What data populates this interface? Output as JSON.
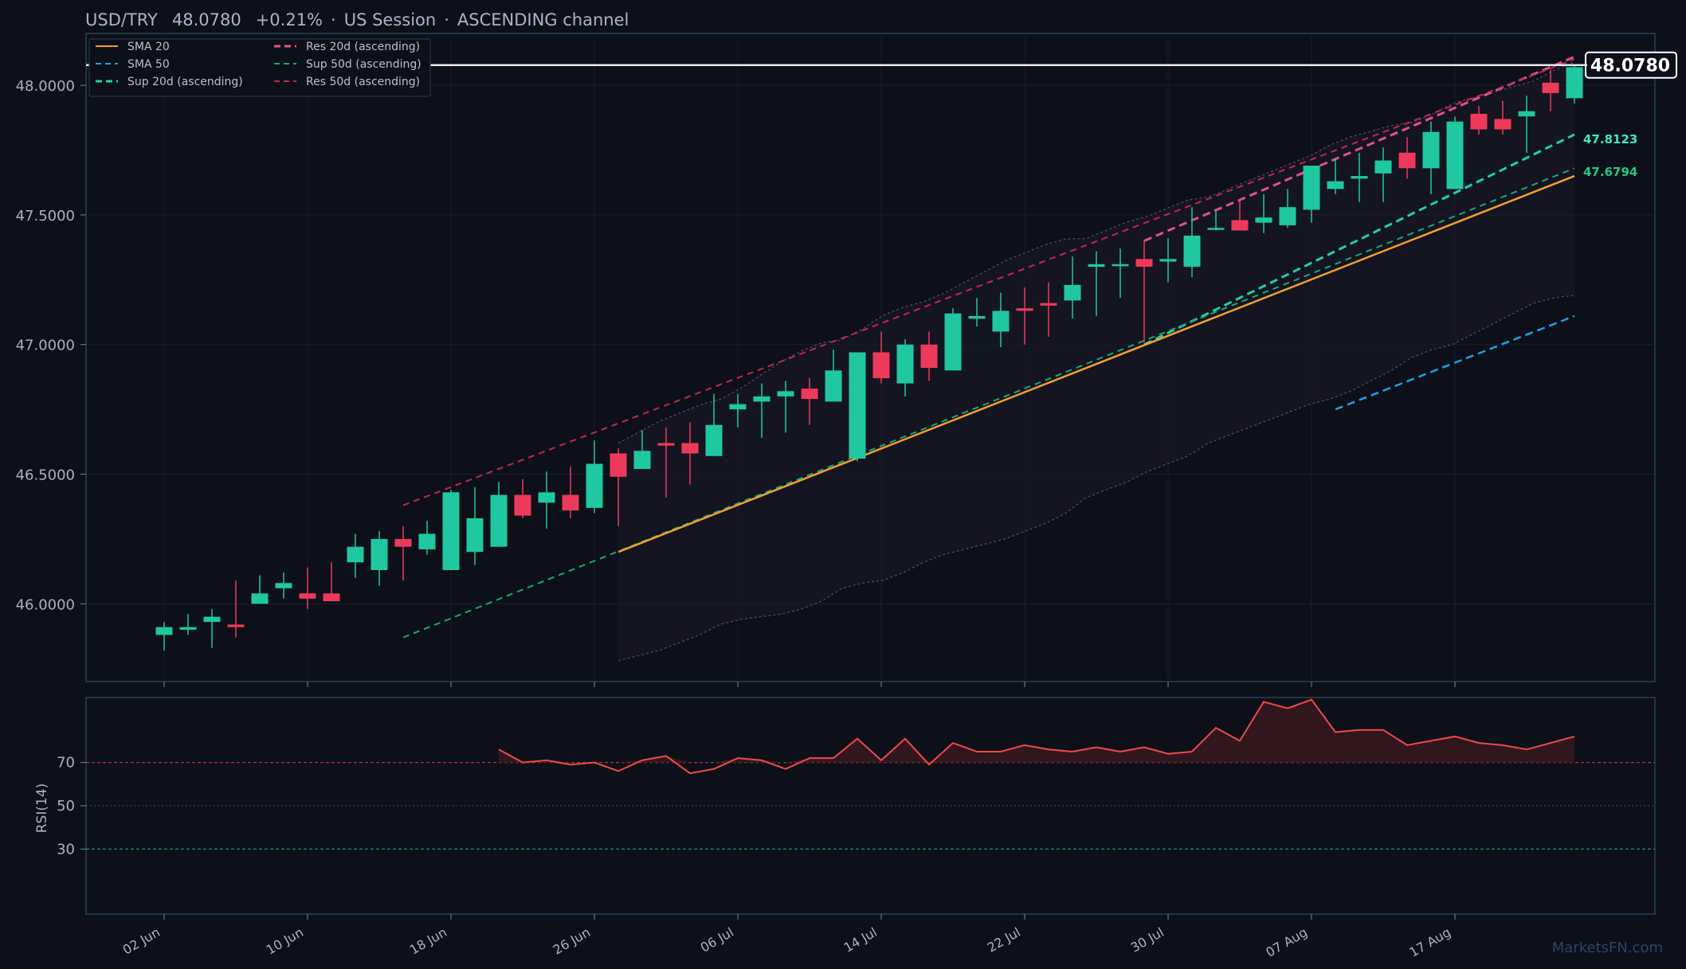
{
  "header": {
    "symbol": "USD/TRY",
    "price": "48.0780",
    "change": "+0.21%",
    "session": "US Session",
    "pattern": "ASCENDING channel"
  },
  "price_label": "48.0780",
  "level_labels": {
    "sup20": "47.8123",
    "sup50": "47.6794"
  },
  "rsi_ylabel": "RSI(14)",
  "watermark": "MarketsFN.com",
  "legend": [
    {
      "label": "SMA 20",
      "color": "#f0a030",
      "style": "solid"
    },
    {
      "label": "SMA 50",
      "color": "#1ea0e6",
      "style": "dashed"
    },
    {
      "label": "Sup 20d (ascending)",
      "color": "#20d0a0",
      "style": "dashed-bold"
    },
    {
      "label": "Res 20d (ascending)",
      "color": "#e0508c",
      "style": "dashed-bold"
    },
    {
      "label": "Sup 50d (ascending)",
      "color": "#18a878",
      "style": "dashed"
    },
    {
      "label": "Res 50d (ascending)",
      "color": "#c02850",
      "style": "dashed"
    }
  ],
  "colors": {
    "background": "#0d1018",
    "up": "#1fc8a0",
    "down": "#ee3a5a",
    "rsi": "#ee4a4a",
    "frame": "#25415c"
  },
  "chart_data": {
    "type": "candlestick",
    "ylim": [
      45.7,
      48.2
    ],
    "yticks": [
      "46.0000",
      "46.5000",
      "47.0000",
      "47.5000",
      "48.0000"
    ],
    "xticks": [
      {
        "i": 0,
        "label": "02 Jun"
      },
      {
        "i": 6,
        "label": "10 Jun"
      },
      {
        "i": 12,
        "label": "18 Jun"
      },
      {
        "i": 18,
        "label": "26 Jun"
      },
      {
        "i": 24,
        "label": "06 Jul"
      },
      {
        "i": 30,
        "label": "14 Jul"
      },
      {
        "i": 36,
        "label": "22 Jul"
      },
      {
        "i": 42,
        "label": "30 Jul"
      },
      {
        "i": 48,
        "label": "07 Aug"
      },
      {
        "i": 54,
        "label": "17 Aug"
      }
    ],
    "candles": [
      [
        45.88,
        45.91,
        45.82,
        45.93
      ],
      [
        45.9,
        45.91,
        45.88,
        45.96
      ],
      [
        45.93,
        45.95,
        45.83,
        45.98
      ],
      [
        45.92,
        45.91,
        45.87,
        46.09
      ],
      [
        46.0,
        46.04,
        46.0,
        46.11
      ],
      [
        46.06,
        46.08,
        46.02,
        46.12
      ],
      [
        46.04,
        46.02,
        45.98,
        46.14
      ],
      [
        46.04,
        46.01,
        46.01,
        46.16
      ],
      [
        46.16,
        46.22,
        46.1,
        46.27
      ],
      [
        46.13,
        46.25,
        46.07,
        46.28
      ],
      [
        46.25,
        46.22,
        46.09,
        46.3
      ],
      [
        46.21,
        46.27,
        46.19,
        46.32
      ],
      [
        46.13,
        46.43,
        46.13,
        46.44
      ],
      [
        46.2,
        46.33,
        46.15,
        46.45
      ],
      [
        46.22,
        46.42,
        46.22,
        46.47
      ],
      [
        46.42,
        46.34,
        46.33,
        46.48
      ],
      [
        46.39,
        46.43,
        46.29,
        46.51
      ],
      [
        46.42,
        46.36,
        46.33,
        46.53
      ],
      [
        46.37,
        46.54,
        46.35,
        46.63
      ],
      [
        46.58,
        46.49,
        46.3,
        46.6
      ],
      [
        46.52,
        46.59,
        46.52,
        46.67
      ],
      [
        46.62,
        46.61,
        46.41,
        46.68
      ],
      [
        46.62,
        46.58,
        46.46,
        46.7
      ],
      [
        46.57,
        46.69,
        46.57,
        46.81
      ],
      [
        46.75,
        46.77,
        46.68,
        46.81
      ],
      [
        46.78,
        46.8,
        46.64,
        46.85
      ],
      [
        46.8,
        46.82,
        46.66,
        46.86
      ],
      [
        46.83,
        46.79,
        46.69,
        46.87
      ],
      [
        46.78,
        46.9,
        46.78,
        46.98
      ],
      [
        46.56,
        46.97,
        46.55,
        46.97
      ],
      [
        46.97,
        46.87,
        46.85,
        47.05
      ],
      [
        46.85,
        47.0,
        46.8,
        47.02
      ],
      [
        47.0,
        46.91,
        46.86,
        47.05
      ],
      [
        46.9,
        47.12,
        46.9,
        47.14
      ],
      [
        47.1,
        47.11,
        47.07,
        47.18
      ],
      [
        47.05,
        47.13,
        46.99,
        47.2
      ],
      [
        47.14,
        47.13,
        47.0,
        47.22
      ],
      [
        47.16,
        47.15,
        47.03,
        47.24
      ],
      [
        47.17,
        47.23,
        47.1,
        47.34
      ],
      [
        47.3,
        47.31,
        47.11,
        47.36
      ],
      [
        47.31,
        47.31,
        47.18,
        47.37
      ],
      [
        47.33,
        47.3,
        47.01,
        47.4
      ],
      [
        47.32,
        47.33,
        47.24,
        47.41
      ],
      [
        47.3,
        47.42,
        47.26,
        47.53
      ],
      [
        47.45,
        47.45,
        47.44,
        47.52
      ],
      [
        47.48,
        47.44,
        47.44,
        47.56
      ],
      [
        47.47,
        47.49,
        47.43,
        47.58
      ],
      [
        47.46,
        47.53,
        47.45,
        47.6
      ],
      [
        47.52,
        47.69,
        47.47,
        47.69
      ],
      [
        47.6,
        47.63,
        47.58,
        47.72
      ],
      [
        47.64,
        47.65,
        47.55,
        47.74
      ],
      [
        47.66,
        47.71,
        47.55,
        47.76
      ],
      [
        47.74,
        47.68,
        47.64,
        47.8
      ],
      [
        47.68,
        47.82,
        47.58,
        47.86
      ],
      [
        47.6,
        47.86,
        47.6,
        47.88
      ],
      [
        47.89,
        47.83,
        47.81,
        47.92
      ],
      [
        47.87,
        47.83,
        47.81,
        47.94
      ],
      [
        47.88,
        47.9,
        47.74,
        47.96
      ],
      [
        48.01,
        47.97,
        47.9,
        48.06
      ],
      [
        47.95,
        48.07,
        47.93,
        48.08
      ]
    ],
    "sma20": {
      "start": 19,
      "end": 59,
      "from": 46.2,
      "to": 47.65
    },
    "sma50": {
      "start": 49,
      "end": 59,
      "from": 46.75,
      "to": 47.11
    },
    "bb_upper_end": 48.09,
    "bb_lower": [
      45.78,
      45.8,
      45.82,
      45.85,
      45.88,
      45.92,
      45.94,
      45.95,
      45.96,
      45.98,
      46.01,
      46.06,
      46.08,
      46.09,
      46.12,
      46.16,
      46.19,
      46.21,
      46.23,
      46.25,
      46.28,
      46.31,
      46.35,
      46.41,
      46.44,
      46.47,
      46.51,
      46.54,
      46.57,
      46.62,
      46.65,
      46.68,
      46.71,
      46.74,
      46.77,
      46.79,
      46.82,
      46.86,
      46.9,
      46.95,
      46.98,
      47.0,
      47.04,
      47.08,
      47.12,
      47.16,
      47.18,
      47.19
    ],
    "trendlines": [
      {
        "name": "Res 20d (ascending)",
        "x0": 41,
        "y0": 47.4,
        "x1": 59,
        "y1": 48.11
      },
      {
        "name": "Sup 20d (ascending)",
        "x0": 41,
        "y0": 47.0,
        "x1": 59,
        "y1": 47.81
      },
      {
        "name": "Res 50d (ascending)",
        "x0": 10,
        "y0": 46.38,
        "x1": 59,
        "y1": 48.1
      },
      {
        "name": "Sup 50d (ascending)",
        "x0": 10,
        "y0": 45.87,
        "x1": 59,
        "y1": 47.68
      }
    ],
    "last_price": 48.078,
    "rsi": {
      "ylim": [
        0,
        100
      ],
      "yticks": [
        30,
        50,
        70
      ],
      "start": 14,
      "values": [
        76,
        70,
        71,
        69,
        70,
        66,
        71,
        73,
        65,
        67,
        72,
        71,
        67,
        72,
        72,
        81,
        71,
        81,
        69,
        79,
        75,
        75,
        78,
        76,
        75,
        77,
        75,
        77,
        74,
        75,
        86,
        80,
        98,
        95,
        99,
        84,
        85,
        85,
        78,
        80,
        82,
        79,
        78,
        76,
        79,
        82
      ]
    }
  }
}
